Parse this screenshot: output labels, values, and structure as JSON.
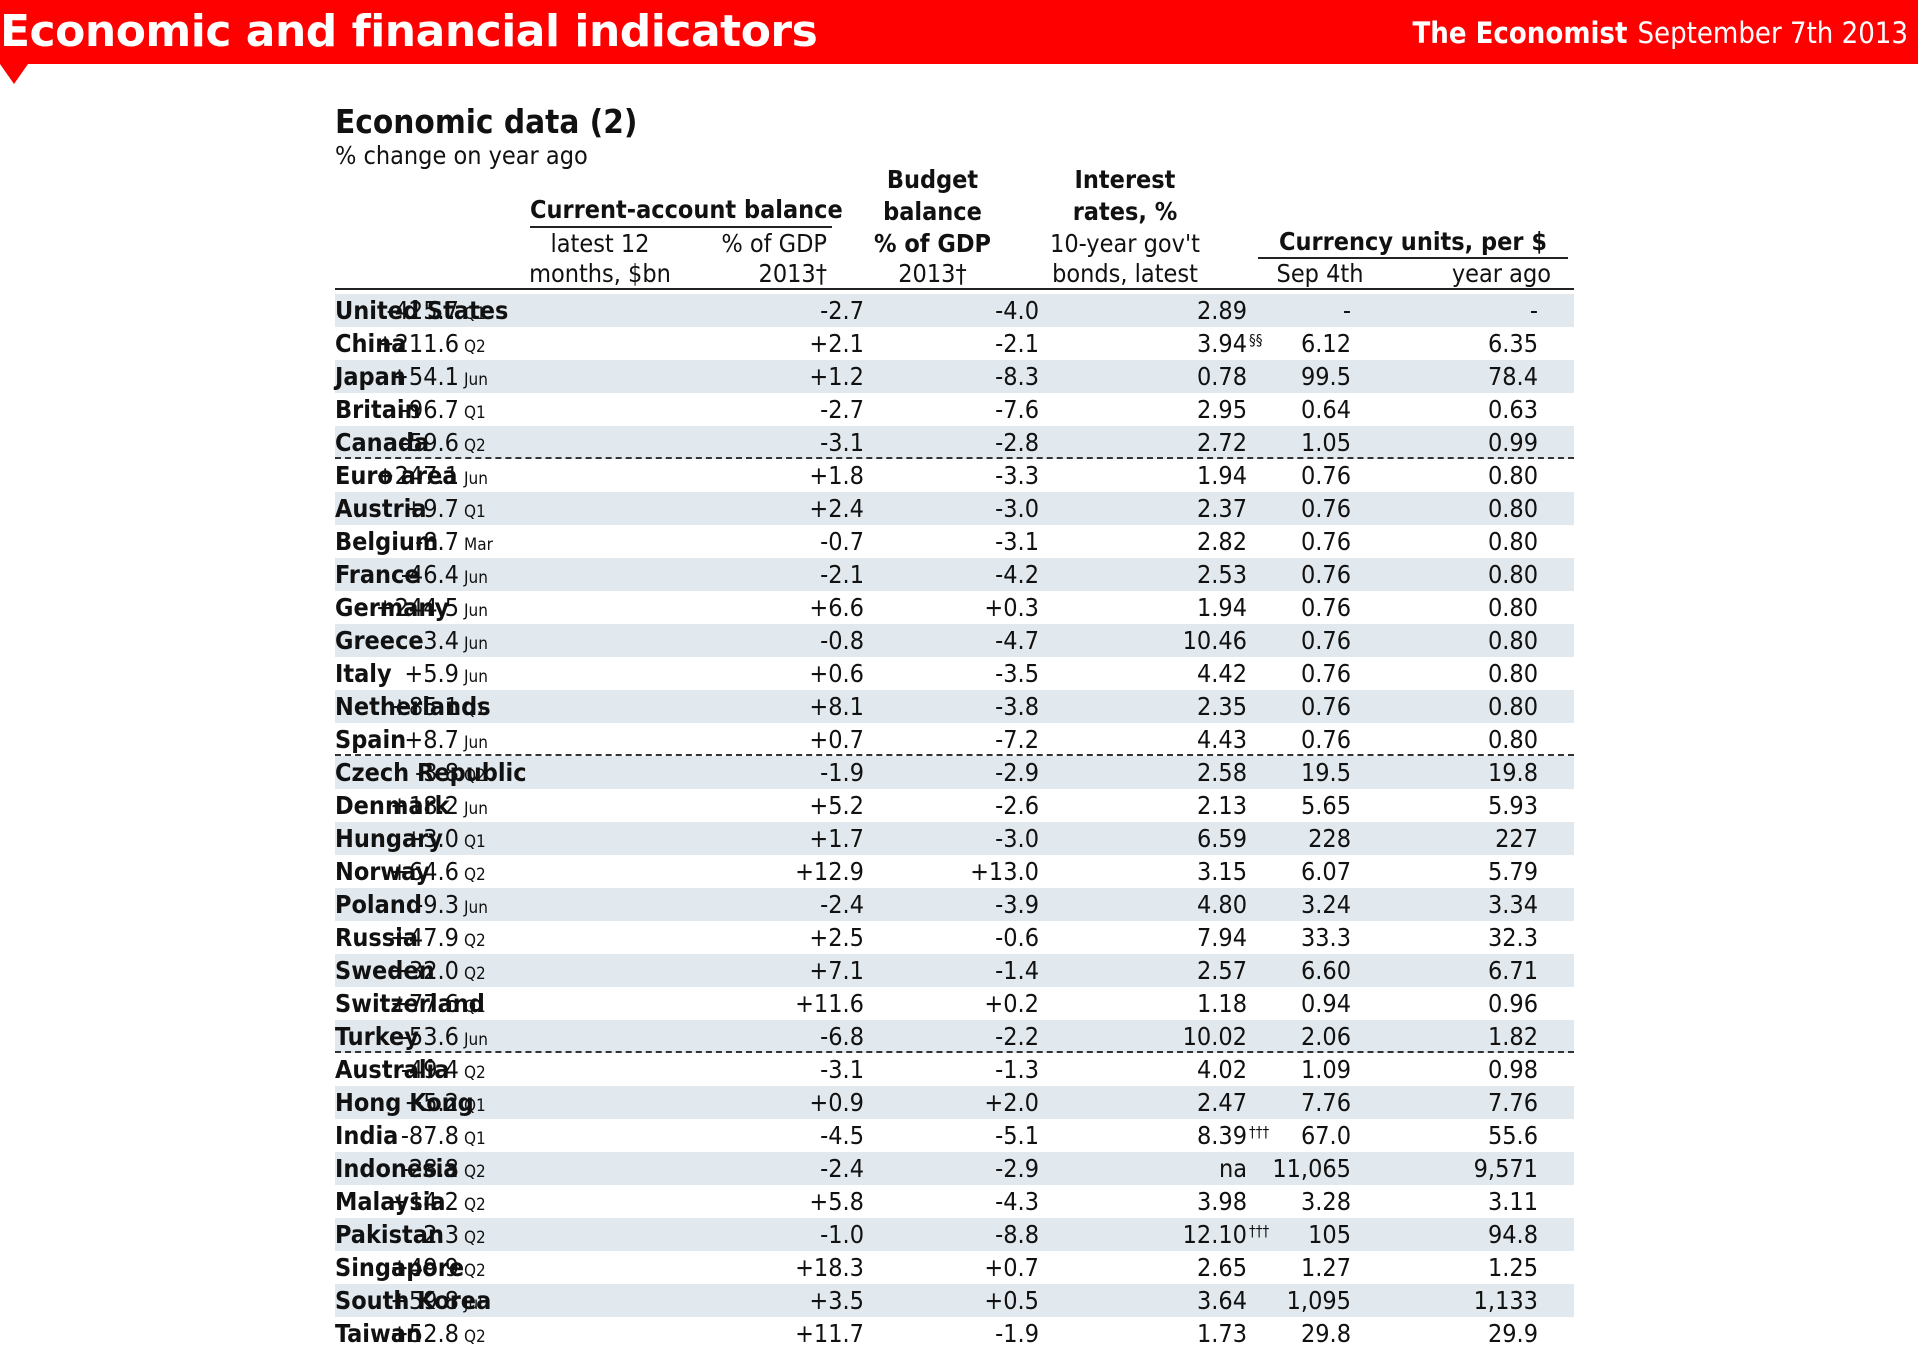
{
  "header": {
    "section": "Economic and financial indicators",
    "brand": "The Economist",
    "date": "September 7th 2013"
  },
  "title": "Economic data (2)",
  "subtitle": "% change on year ago",
  "columns": {
    "ca_group": "Current-account balance",
    "ca_latest_1": "latest 12",
    "ca_latest_2": "months, $bn",
    "ca_gdp_1": "% of GDP",
    "ca_gdp_2": "2013†",
    "budget_1": "Budget",
    "budget_2": "balance",
    "budget_3": "% of GDP",
    "budget_4": "2013†",
    "interest_1": "Interest",
    "interest_2": "rates, %",
    "interest_3": "10-year gov't",
    "interest_4": "bonds, latest",
    "fx_group": "Currency units, per $",
    "fx_now": "Sep 4th",
    "fx_ago": "year ago"
  },
  "rows": [
    {
      "country": "United States",
      "ca": "-425.7",
      "period": "Q1",
      "gdp": "-2.7",
      "budget": "-4.0",
      "interest": "2.89",
      "fn": "",
      "fx_now": "-",
      "fx_ago": "-"
    },
    {
      "country": "China",
      "ca": "+211.6",
      "period": "Q2",
      "gdp": "+2.1",
      "budget": "-2.1",
      "interest": "3.94",
      "fn": "§§",
      "fx_now": "6.12",
      "fx_ago": "6.35"
    },
    {
      "country": "Japan",
      "ca": "+54.1",
      "period": "Jun",
      "gdp": "+1.2",
      "budget": "-8.3",
      "interest": "0.78",
      "fn": "",
      "fx_now": "99.5",
      "fx_ago": "78.4"
    },
    {
      "country": "Britain",
      "ca": "-96.7",
      "period": "Q1",
      "gdp": "-2.7",
      "budget": "-7.6",
      "interest": "2.95",
      "fn": "",
      "fx_now": "0.64",
      "fx_ago": "0.63"
    },
    {
      "country": "Canada",
      "ca": "-59.6",
      "period": "Q2",
      "gdp": "-3.1",
      "budget": "-2.8",
      "interest": "2.72",
      "fn": "",
      "fx_now": "1.05",
      "fx_ago": "0.99"
    },
    {
      "country": "Euro area",
      "ca": "+247.1",
      "period": "Jun",
      "gdp": "+1.8",
      "budget": "-3.3",
      "interest": "1.94",
      "fn": "",
      "fx_now": "0.76",
      "fx_ago": "0.80"
    },
    {
      "country": "Austria",
      "ca": "+9.7",
      "period": "Q1",
      "gdp": "+2.4",
      "budget": "-3.0",
      "interest": "2.37",
      "fn": "",
      "fx_now": "0.76",
      "fx_ago": "0.80"
    },
    {
      "country": "Belgium",
      "ca": "-8.7",
      "period": "Mar",
      "gdp": "-0.7",
      "budget": "-3.1",
      "interest": "2.82",
      "fn": "",
      "fx_now": "0.76",
      "fx_ago": "0.80"
    },
    {
      "country": "France",
      "ca": "-46.4",
      "period": "Jun",
      "gdp": "-2.1",
      "budget": "-4.2",
      "interest": "2.53",
      "fn": "",
      "fx_now": "0.76",
      "fx_ago": "0.80"
    },
    {
      "country": "Germany",
      "ca": "+244.5",
      "period": "Jun",
      "gdp": "+6.6",
      "budget": "+0.3",
      "interest": "1.94",
      "fn": "",
      "fx_now": "0.76",
      "fx_ago": "0.80"
    },
    {
      "country": "Greece",
      "ca": "-3.4",
      "period": "Jun",
      "gdp": "-0.8",
      "budget": "-4.7",
      "interest": "10.46",
      "fn": "",
      "fx_now": "0.76",
      "fx_ago": "0.80"
    },
    {
      "country": "Italy",
      "ca": "+5.9",
      "period": "Jun",
      "gdp": "+0.6",
      "budget": "-3.5",
      "interest": "4.42",
      "fn": "",
      "fx_now": "0.76",
      "fx_ago": "0.80"
    },
    {
      "country": "Netherlands",
      "ca": "+85.1",
      "period": "Q1",
      "gdp": "+8.1",
      "budget": "-3.8",
      "interest": "2.35",
      "fn": "",
      "fx_now": "0.76",
      "fx_ago": "0.80"
    },
    {
      "country": "Spain",
      "ca": "+8.7",
      "period": "Jun",
      "gdp": "+0.7",
      "budget": "-7.2",
      "interest": "4.43",
      "fn": "",
      "fx_now": "0.76",
      "fx_ago": "0.80"
    },
    {
      "country": "Czech Republic",
      "ca": "-3.8",
      "period": "Q2",
      "gdp": "-1.9",
      "budget": "-2.9",
      "interest": "2.58",
      "fn": "",
      "fx_now": "19.5",
      "fx_ago": "19.8"
    },
    {
      "country": "Denmark",
      "ca": "+18.2",
      "period": "Jun",
      "gdp": "+5.2",
      "budget": "-2.6",
      "interest": "2.13",
      "fn": "",
      "fx_now": "5.65",
      "fx_ago": "5.93"
    },
    {
      "country": "Hungary",
      "ca": "+3.0",
      "period": "Q1",
      "gdp": "+1.7",
      "budget": "-3.0",
      "interest": "6.59",
      "fn": "",
      "fx_now": "228",
      "fx_ago": "227"
    },
    {
      "country": "Norway",
      "ca": "+64.6",
      "period": "Q2",
      "gdp": "+12.9",
      "budget": "+13.0",
      "interest": "3.15",
      "fn": "",
      "fx_now": "6.07",
      "fx_ago": "5.79"
    },
    {
      "country": "Poland",
      "ca": "-9.3",
      "period": "Jun",
      "gdp": "-2.4",
      "budget": "-3.9",
      "interest": "4.80",
      "fn": "",
      "fx_now": "3.24",
      "fx_ago": "3.34"
    },
    {
      "country": "Russia",
      "ca": "+47.9",
      "period": "Q2",
      "gdp": "+2.5",
      "budget": "-0.6",
      "interest": "7.94",
      "fn": "",
      "fx_now": "33.3",
      "fx_ago": "32.3"
    },
    {
      "country": "Sweden",
      "ca": "+32.0",
      "period": "Q2",
      "gdp": "+7.1",
      "budget": "-1.4",
      "interest": "2.57",
      "fn": "",
      "fx_now": "6.60",
      "fx_ago": "6.71"
    },
    {
      "country": "Switzerland",
      "ca": "+77.6",
      "period": "Q1",
      "gdp": "+11.6",
      "budget": "+0.2",
      "interest": "1.18",
      "fn": "",
      "fx_now": "0.94",
      "fx_ago": "0.96"
    },
    {
      "country": "Turkey",
      "ca": "-53.6",
      "period": "Jun",
      "gdp": "-6.8",
      "budget": "-2.2",
      "interest": "10.02",
      "fn": "",
      "fx_now": "2.06",
      "fx_ago": "1.82"
    },
    {
      "country": "Australia",
      "ca": "-49.4",
      "period": "Q2",
      "gdp": "-3.1",
      "budget": "-1.3",
      "interest": "4.02",
      "fn": "",
      "fx_now": "1.09",
      "fx_ago": "0.98"
    },
    {
      "country": "Hong Kong",
      "ca": "+5.2",
      "period": "Q1",
      "gdp": "+0.9",
      "budget": "+2.0",
      "interest": "2.47",
      "fn": "",
      "fx_now": "7.76",
      "fx_ago": "7.76"
    },
    {
      "country": "India",
      "ca": "-87.8",
      "period": "Q1",
      "gdp": "-4.5",
      "budget": "-5.1",
      "interest": "8.39",
      "fn": "†††",
      "fx_now": "67.0",
      "fx_ago": "55.6"
    },
    {
      "country": "Indonesia",
      "ca": "-28.8",
      "period": "Q2",
      "gdp": "-2.4",
      "budget": "-2.9",
      "interest": "na",
      "fn": "",
      "fx_now": "11,065",
      "fx_ago": "9,571"
    },
    {
      "country": "Malaysia",
      "ca": "+14.2",
      "period": "Q2",
      "gdp": "+5.8",
      "budget": "-4.3",
      "interest": "3.98",
      "fn": "",
      "fx_now": "3.28",
      "fx_ago": "3.11"
    },
    {
      "country": "Pakistan",
      "ca": "-2.3",
      "period": "Q2",
      "gdp": "-1.0",
      "budget": "-8.8",
      "interest": "12.10",
      "fn": "†††",
      "fx_now": "105",
      "fx_ago": "94.8"
    },
    {
      "country": "Singapore",
      "ca": "+49.9",
      "period": "Q2",
      "gdp": "+18.3",
      "budget": "+0.7",
      "interest": "2.65",
      "fn": "",
      "fx_now": "1.27",
      "fx_ago": "1.25"
    },
    {
      "country": "South Korea",
      "ca": "+59.8",
      "period": "Jul",
      "gdp": "+3.5",
      "budget": "+0.5",
      "interest": "3.64",
      "fn": "",
      "fx_now": "1,095",
      "fx_ago": "1,133"
    },
    {
      "country": "Taiwan",
      "ca": "+52.8",
      "period": "Q2",
      "gdp": "+11.7",
      "budget": "-1.9",
      "interest": "1.73",
      "fn": "",
      "fx_now": "29.8",
      "fx_ago": "29.9"
    }
  ]
}
